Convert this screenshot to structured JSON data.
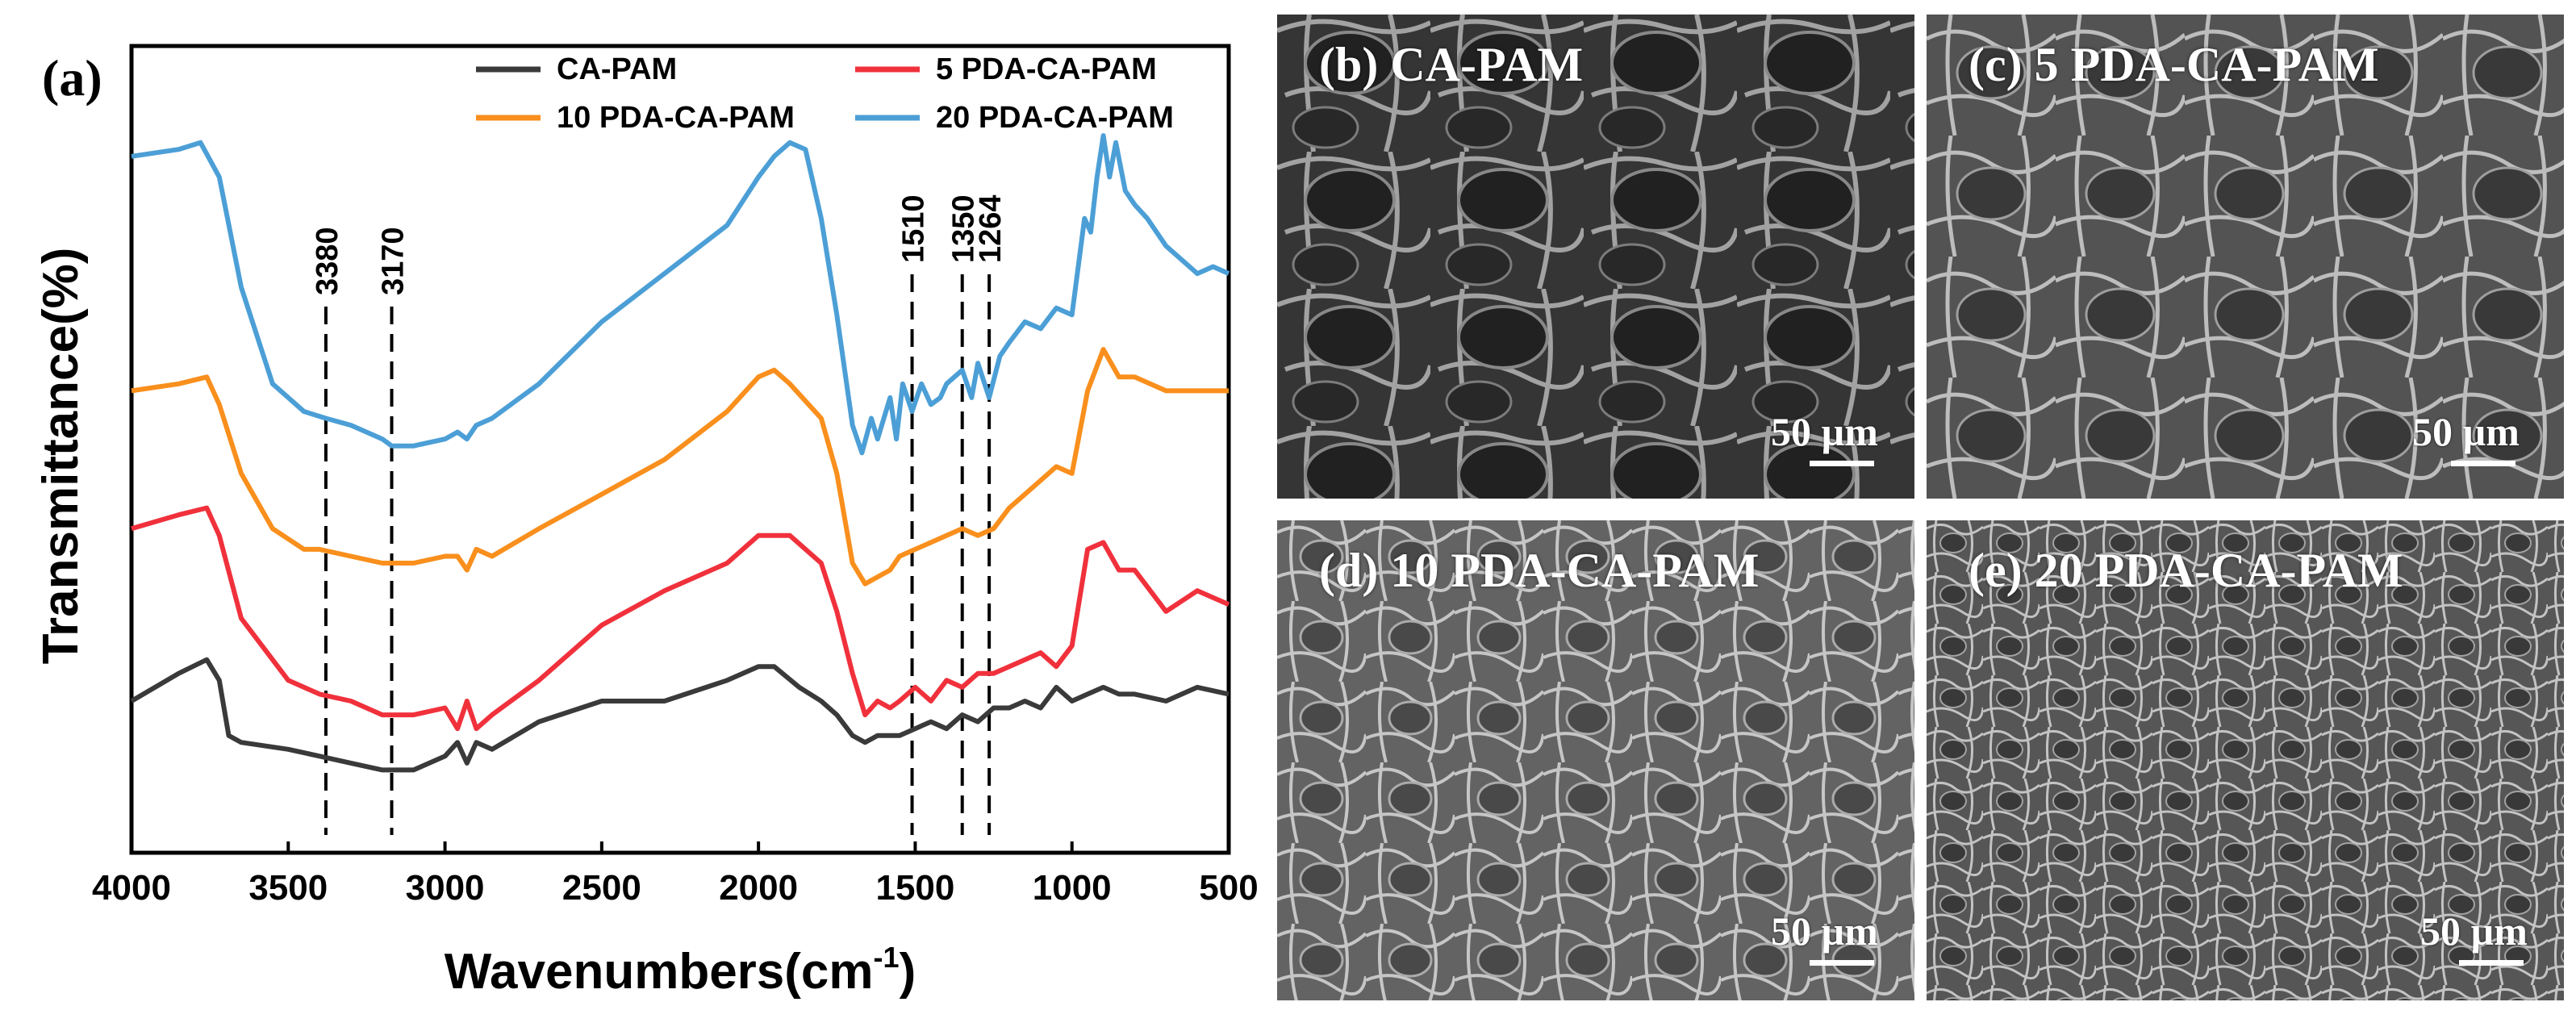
{
  "chart_data": {
    "type": "line",
    "panel_label": "(a)",
    "xlabel": "Wavenumbers(cm",
    "xlabel_sup": "-1",
    "xlabel_suffix": ")",
    "ylabel": "Transmittance(%)",
    "xlim": [
      4000,
      500
    ],
    "x_ticks": [
      "4000",
      "3500",
      "3000",
      "2500",
      "2000",
      "1500",
      "1000",
      "500"
    ],
    "y_ticks_shown": false,
    "legend_position": "top",
    "series": [
      {
        "name": "CA-PAM",
        "color": "#3a3a3a",
        "x": [
          4000,
          3850,
          3760,
          3720,
          3690,
          3650,
          3500,
          3400,
          3300,
          3200,
          3100,
          3000,
          2960,
          2930,
          2900,
          2850,
          2700,
          2500,
          2300,
          2100,
          2000,
          1950,
          1870,
          1800,
          1750,
          1700,
          1660,
          1620,
          1580,
          1550,
          1500,
          1450,
          1400,
          1350,
          1300,
          1250,
          1200,
          1150,
          1100,
          1050,
          1000,
          950,
          900,
          850,
          800,
          700,
          600,
          500
        ],
        "y": [
          0.0,
          0.04,
          0.06,
          0.03,
          -0.05,
          -0.06,
          -0.07,
          -0.08,
          -0.09,
          -0.1,
          -0.1,
          -0.08,
          -0.06,
          -0.09,
          -0.06,
          -0.07,
          -0.03,
          0.0,
          0.0,
          0.03,
          0.05,
          0.05,
          0.02,
          0.0,
          -0.02,
          -0.05,
          -0.06,
          -0.05,
          -0.05,
          -0.05,
          -0.04,
          -0.03,
          -0.04,
          -0.02,
          -0.03,
          -0.01,
          -0.01,
          0.0,
          -0.01,
          0.02,
          0.0,
          0.01,
          0.02,
          0.01,
          0.01,
          0.0,
          0.02,
          0.01
        ]
      },
      {
        "name": "5 PDA-CA-PAM",
        "color": "#f0313c",
        "x": [
          4000,
          3850,
          3760,
          3720,
          3650,
          3500,
          3400,
          3300,
          3200,
          3100,
          3000,
          2960,
          2930,
          2900,
          2850,
          2700,
          2500,
          2300,
          2100,
          2000,
          1900,
          1800,
          1750,
          1700,
          1660,
          1620,
          1580,
          1550,
          1500,
          1450,
          1400,
          1350,
          1300,
          1250,
          1200,
          1150,
          1100,
          1050,
          1000,
          950,
          900,
          850,
          800,
          700,
          600,
          500
        ],
        "y": [
          0.25,
          0.27,
          0.28,
          0.24,
          0.12,
          0.03,
          0.01,
          0.0,
          -0.02,
          -0.02,
          -0.01,
          -0.04,
          0.0,
          -0.04,
          -0.02,
          0.03,
          0.11,
          0.16,
          0.2,
          0.24,
          0.24,
          0.2,
          0.13,
          0.04,
          -0.02,
          0.0,
          -0.01,
          0.0,
          0.02,
          0.0,
          0.03,
          0.02,
          0.04,
          0.04,
          0.05,
          0.06,
          0.07,
          0.05,
          0.08,
          0.22,
          0.23,
          0.19,
          0.19,
          0.13,
          0.16,
          0.14
        ]
      },
      {
        "name": "10 PDA-CA-PAM",
        "color": "#f98f1d",
        "x": [
          4000,
          3850,
          3760,
          3720,
          3650,
          3550,
          3450,
          3400,
          3300,
          3200,
          3100,
          3000,
          2960,
          2930,
          2900,
          2850,
          2700,
          2500,
          2300,
          2100,
          2000,
          1950,
          1900,
          1800,
          1750,
          1700,
          1660,
          1620,
          1580,
          1550,
          1500,
          1450,
          1400,
          1350,
          1300,
          1250,
          1200,
          1150,
          1100,
          1050,
          1000,
          950,
          900,
          850,
          800,
          700,
          600,
          500
        ],
        "y": [
          0.45,
          0.46,
          0.47,
          0.43,
          0.33,
          0.25,
          0.22,
          0.22,
          0.21,
          0.2,
          0.2,
          0.21,
          0.21,
          0.19,
          0.22,
          0.21,
          0.25,
          0.3,
          0.35,
          0.42,
          0.47,
          0.48,
          0.46,
          0.41,
          0.33,
          0.2,
          0.17,
          0.18,
          0.19,
          0.21,
          0.22,
          0.23,
          0.24,
          0.25,
          0.24,
          0.25,
          0.28,
          0.3,
          0.32,
          0.34,
          0.33,
          0.45,
          0.51,
          0.47,
          0.47,
          0.45,
          0.45,
          0.45
        ]
      },
      {
        "name": "20 PDA-CA-PAM",
        "color": "#4c9fd6",
        "x": [
          4000,
          3850,
          3780,
          3720,
          3650,
          3550,
          3450,
          3380,
          3300,
          3250,
          3200,
          3170,
          3100,
          3000,
          2960,
          2930,
          2900,
          2850,
          2700,
          2500,
          2300,
          2100,
          2000,
          1950,
          1900,
          1850,
          1800,
          1750,
          1700,
          1670,
          1640,
          1620,
          1580,
          1560,
          1540,
          1510,
          1480,
          1450,
          1420,
          1400,
          1350,
          1320,
          1300,
          1264,
          1230,
          1200,
          1150,
          1100,
          1050,
          1000,
          960,
          940,
          920,
          900,
          880,
          860,
          830,
          800,
          760,
          700,
          650,
          600,
          550,
          500
        ],
        "y": [
          0.79,
          0.8,
          0.81,
          0.76,
          0.6,
          0.46,
          0.42,
          0.41,
          0.4,
          0.39,
          0.38,
          0.37,
          0.37,
          0.38,
          0.39,
          0.38,
          0.4,
          0.41,
          0.46,
          0.55,
          0.62,
          0.69,
          0.76,
          0.79,
          0.81,
          0.8,
          0.7,
          0.56,
          0.4,
          0.36,
          0.41,
          0.38,
          0.44,
          0.38,
          0.46,
          0.42,
          0.46,
          0.43,
          0.44,
          0.46,
          0.48,
          0.44,
          0.49,
          0.44,
          0.5,
          0.52,
          0.55,
          0.54,
          0.57,
          0.56,
          0.7,
          0.68,
          0.76,
          0.82,
          0.76,
          0.81,
          0.74,
          0.72,
          0.7,
          0.66,
          0.64,
          0.62,
          0.63,
          0.62
        ]
      }
    ],
    "annotations": [
      {
        "x": 3380,
        "label": "3380"
      },
      {
        "x": 3170,
        "label": "3170"
      },
      {
        "x": 1510,
        "label": "1510"
      },
      {
        "x": 1350,
        "label": "1350"
      },
      {
        "x": 1264,
        "label": "1264"
      }
    ]
  },
  "sem_panels": [
    {
      "label": "(b) CA-PAM",
      "scale": "50 µm"
    },
    {
      "label": "(c) 5 PDA-CA-PAM",
      "scale": "50 µm"
    },
    {
      "label": "(d) 10 PDA-CA-PAM",
      "scale": "50 µm"
    },
    {
      "label": "(e) 20 PDA-CA-PAM",
      "scale": "50 µm"
    }
  ]
}
